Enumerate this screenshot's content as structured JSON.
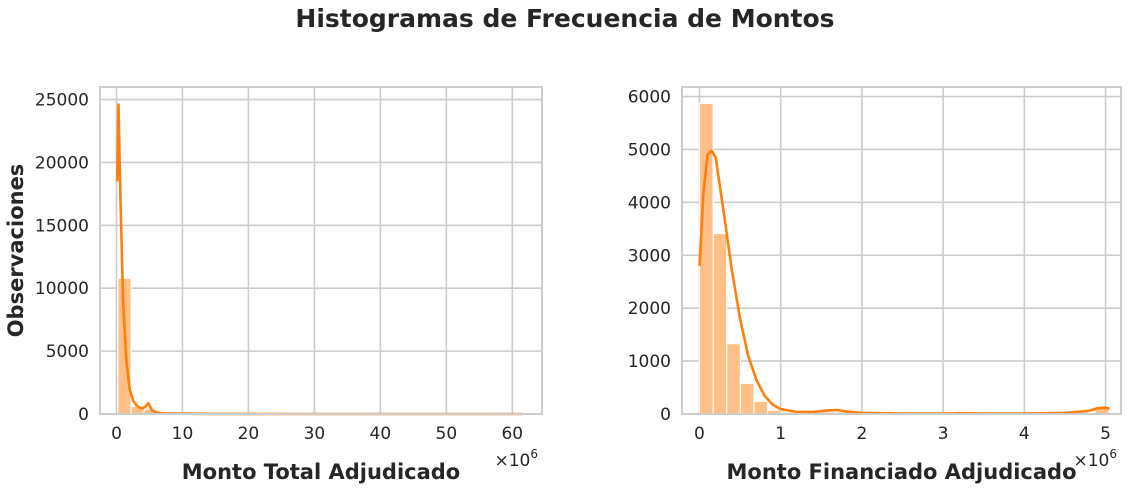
{
  "figure": {
    "title": "Histogramas de Frecuencia de Montos"
  },
  "colors": {
    "bar": "#ffbf86",
    "kde": "#ff7f0e",
    "grid": "#cccccc",
    "frame": "#cccccc"
  },
  "chart_data": [
    {
      "type": "histogram",
      "xlabel": "Monto Total Adjudicado",
      "ylabel": "Observaciones",
      "x_multiplier": "×10",
      "x_exponent": "6",
      "xlim": [
        -2.5,
        64.5
      ],
      "ylim": [
        0,
        26000
      ],
      "xticks": [
        0,
        10,
        20,
        30,
        40,
        50,
        60
      ],
      "yticks": [
        0,
        5000,
        10000,
        15000,
        20000,
        25000
      ],
      "grid": true,
      "bin_width": 2.0,
      "bin_edges": [
        0.2,
        2.2,
        4.2,
        6.2,
        8.2,
        10.2,
        12.2,
        14.2,
        16.2,
        18.2,
        20.2,
        22.2,
        24.2,
        26.2,
        28.2,
        30.2,
        32.2,
        34.2,
        36.2,
        38.2,
        40.2,
        42.2,
        44.2,
        46.2,
        48.2,
        50.2,
        52.2,
        54.2,
        56.2,
        58.2,
        60.2,
        62.2
      ],
      "counts": [
        10800,
        600,
        400,
        100,
        60,
        30,
        20,
        15,
        10,
        10,
        5,
        5,
        5,
        5,
        5,
        5,
        5,
        5,
        5,
        5,
        5,
        5,
        5,
        5,
        5,
        5,
        5,
        5,
        5,
        5,
        5
      ],
      "kde": {
        "x": [
          0.1,
          0.3,
          0.6,
          1.0,
          1.5,
          2.0,
          2.5,
          3.0,
          3.5,
          4.0,
          4.4,
          4.8,
          5.0,
          5.3,
          5.8,
          6.5,
          8,
          10,
          15,
          20,
          30,
          40,
          50,
          60,
          61.5
        ],
        "y": [
          18500,
          24600,
          17000,
          9000,
          4200,
          2000,
          1100,
          700,
          500,
          450,
          600,
          850,
          700,
          350,
          150,
          80,
          40,
          20,
          8,
          5,
          3,
          2,
          2,
          2,
          1
        ]
      }
    },
    {
      "type": "histogram",
      "xlabel": "Monto Financiado Adjudicado",
      "ylabel": "",
      "x_multiplier": "×10",
      "x_exponent": "6",
      "xlim": [
        -0.215,
        5.19
      ],
      "ylim": [
        0,
        6180
      ],
      "xticks": [
        0,
        1,
        2,
        3,
        4,
        5
      ],
      "yticks": [
        0,
        1000,
        2000,
        3000,
        4000,
        5000,
        6000
      ],
      "grid": true,
      "bin_width": 0.168,
      "bin_edges": [
        0.0,
        0.168,
        0.336,
        0.504,
        0.672,
        0.84,
        1.008,
        1.176,
        1.344,
        1.512,
        1.68,
        1.848,
        2.016,
        2.184,
        2.352,
        2.52,
        2.688,
        2.856,
        3.024,
        3.192,
        3.36,
        3.528,
        3.696,
        3.864,
        4.032,
        4.2,
        4.368,
        4.536,
        4.704,
        4.872,
        5.04
      ],
      "counts": [
        5870,
        3410,
        1330,
        580,
        240,
        70,
        35,
        20,
        20,
        40,
        35,
        15,
        10,
        10,
        5,
        5,
        5,
        5,
        5,
        15,
        10,
        5,
        5,
        5,
        5,
        5,
        5,
        10,
        15,
        130
      ],
      "kde": {
        "x": [
          0.0,
          0.05,
          0.1,
          0.15,
          0.2,
          0.3,
          0.4,
          0.5,
          0.6,
          0.7,
          0.8,
          0.9,
          1.0,
          1.2,
          1.4,
          1.6,
          1.7,
          1.8,
          2.0,
          2.5,
          3.0,
          3.2,
          3.5,
          4.0,
          4.5,
          4.8,
          4.9,
          5.0,
          5.05
        ],
        "y": [
          2800,
          4200,
          4900,
          4980,
          4850,
          3800,
          2700,
          1800,
          1100,
          650,
          350,
          180,
          90,
          40,
          40,
          70,
          75,
          50,
          20,
          10,
          10,
          15,
          10,
          10,
          20,
          60,
          110,
          120,
          100
        ]
      }
    }
  ]
}
